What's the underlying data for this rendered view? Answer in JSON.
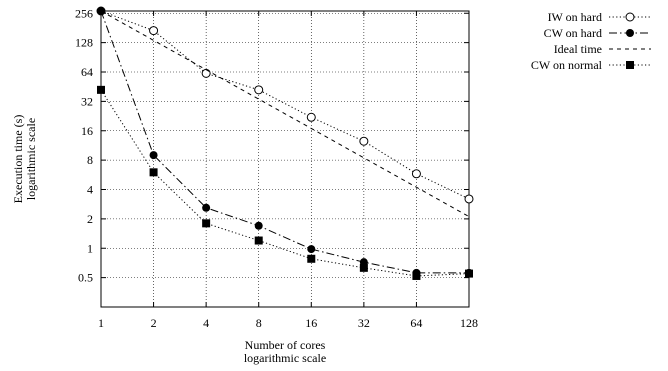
{
  "chart_data": {
    "type": "line",
    "title": "",
    "xlabel": [
      "Number of cores",
      "logarithmic scale"
    ],
    "ylabel": [
      "Execution time (s)",
      "logarithmic scale"
    ],
    "x_scale": "log2",
    "y_scale": "log2",
    "x": [
      1,
      2,
      4,
      8,
      16,
      32,
      64,
      128
    ],
    "x_ticks": [
      "1",
      "2",
      "4",
      "8",
      "16",
      "32",
      "64",
      "128"
    ],
    "y_ticks": [
      0.5,
      1,
      2,
      4,
      8,
      16,
      32,
      64,
      128,
      256
    ],
    "y_tick_labels": [
      "0.5",
      "1",
      "2",
      "4",
      "8",
      "16",
      "32",
      "64",
      "128",
      "256"
    ],
    "xlim": [
      1,
      128
    ],
    "ylim": [
      0.25,
      270
    ],
    "grid": true,
    "legend_position": "outside-top-right",
    "series": [
      {
        "name": "IW on hard",
        "line": "dotted",
        "marker": "open-circle",
        "values": [
          270,
          170,
          62,
          42,
          22,
          12.5,
          5.8,
          3.2
        ]
      },
      {
        "name": "CW on hard",
        "line": "dash-dot",
        "marker": "filled-circle",
        "values": [
          270,
          9,
          2.6,
          1.7,
          0.98,
          0.72,
          0.56,
          0.56
        ]
      },
      {
        "name": "Ideal time",
        "line": "dashed",
        "marker": "none",
        "values": [
          270,
          135,
          67.5,
          33.75,
          16.9,
          8.44,
          4.22,
          2.11
        ]
      },
      {
        "name": "CW on normal",
        "line": "dotted",
        "marker": "filled-square",
        "values": [
          42,
          6,
          1.8,
          1.2,
          0.78,
          0.63,
          0.52,
          0.55
        ]
      }
    ]
  }
}
